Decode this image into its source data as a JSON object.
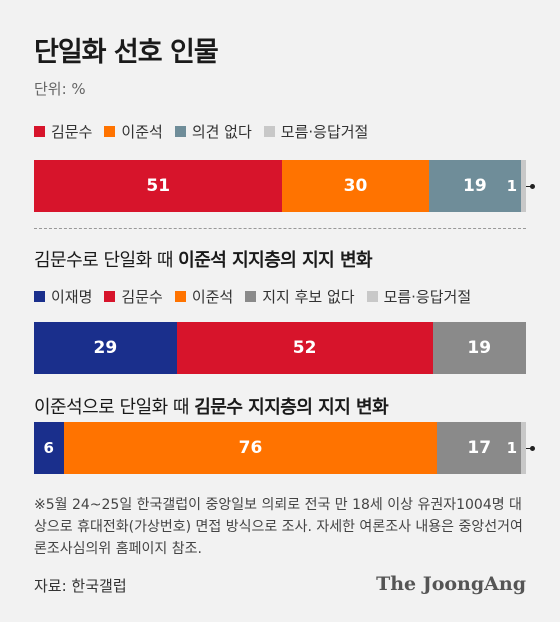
{
  "title": "단일화 선호 인물",
  "unit": "단위: %",
  "colors": {
    "red": "#d7142b",
    "orange": "#ff7300",
    "slate": "#6f8d99",
    "lightgray": "#c8c8c8",
    "navy": "#1a2f8c",
    "gray": "#8a8a8a"
  },
  "legend1": [
    {
      "label": "김문수",
      "color": "#d7142b"
    },
    {
      "label": "이준석",
      "color": "#ff7300"
    },
    {
      "label": "의견 없다",
      "color": "#6f8d99"
    },
    {
      "label": "모름·응답거절",
      "color": "#c8c8c8"
    }
  ],
  "subtitle2_prefix": "김문수로 단일화 때 ",
  "subtitle2_bold": "이준석 지지층의 지지 변화",
  "legend2": [
    {
      "label": "이재명",
      "color": "#1a2f8c"
    },
    {
      "label": "김문수",
      "color": "#d7142b"
    },
    {
      "label": "이준석",
      "color": "#ff7300"
    },
    {
      "label": "지지 후보 없다",
      "color": "#8a8a8a"
    },
    {
      "label": "모름·응답거절",
      "color": "#c8c8c8"
    }
  ],
  "subtitle3_prefix": "이준석으로 단일화 때 ",
  "subtitle3_bold": "김문수 지지층의 지지 변화",
  "chart_data": [
    {
      "type": "bar",
      "title": "단일화 선호 인물",
      "series": [
        {
          "name": "김문수",
          "values": [
            51
          ],
          "color": "#d7142b"
        },
        {
          "name": "이준석",
          "values": [
            30
          ],
          "color": "#ff7300"
        },
        {
          "name": "의견 없다",
          "values": [
            19
          ],
          "color": "#6f8d99"
        },
        {
          "name": "모름·응답거절",
          "values": [
            1
          ],
          "color": "#c8c8c8"
        }
      ]
    },
    {
      "type": "bar",
      "title": "김문수로 단일화 때 이준석 지지층의 지지 변화",
      "series": [
        {
          "name": "이재명",
          "values": [
            29
          ],
          "color": "#1a2f8c"
        },
        {
          "name": "김문수",
          "values": [
            52
          ],
          "color": "#d7142b"
        },
        {
          "name": "지지 후보 없다",
          "values": [
            19
          ],
          "color": "#8a8a8a"
        }
      ]
    },
    {
      "type": "bar",
      "title": "이준석으로 단일화 때 김문수 지지층의 지지 변화",
      "series": [
        {
          "name": "이재명",
          "values": [
            6
          ],
          "color": "#1a2f8c"
        },
        {
          "name": "이준석",
          "values": [
            76
          ],
          "color": "#ff7300"
        },
        {
          "name": "지지 후보 없다",
          "values": [
            17
          ],
          "color": "#8a8a8a"
        },
        {
          "name": "모름·응답거절",
          "values": [
            1
          ],
          "color": "#c8c8c8"
        }
      ]
    }
  ],
  "note": "※5월 24~25일 한국갤럽이 중앙일보 의뢰로 전국 만 18세 이상 유권자1004명 대상으로 휴대전화(가상번호) 면접 방식으로 조사. 자세한 여론조사 내용은 중앙선거여론조사심의위 홈페이지 참조.",
  "source": "자료: 한국갤럽",
  "brand": "The JoongAng"
}
